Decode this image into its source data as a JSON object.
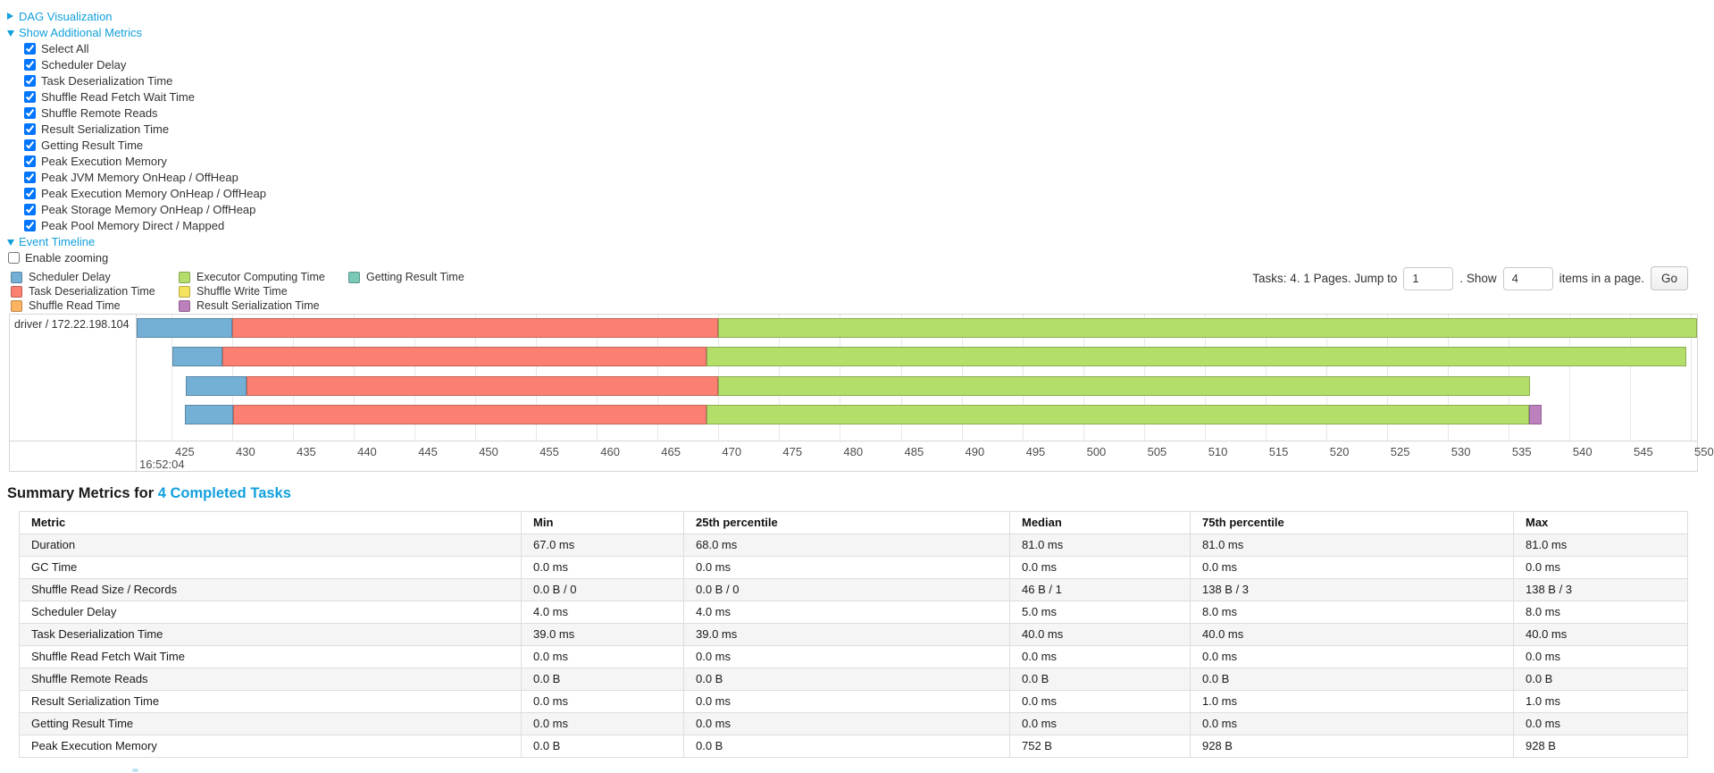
{
  "dag_panel": {
    "label": "DAG Visualization",
    "collapsed": true
  },
  "metrics_panel": {
    "label": "Show Additional Metrics",
    "items": [
      "Select All",
      "Scheduler Delay",
      "Task Deserialization Time",
      "Shuffle Read Fetch Wait Time",
      "Shuffle Remote Reads",
      "Result Serialization Time",
      "Getting Result Time",
      "Peak Execution Memory",
      "Peak JVM Memory OnHeap / OffHeap",
      "Peak Execution Memory OnHeap / OffHeap",
      "Peak Storage Memory OnHeap / OffHeap",
      "Peak Pool Memory Direct / Mapped"
    ],
    "all_checked": true
  },
  "timeline_panel": {
    "label": "Event Timeline",
    "enable_zooming_label": "Enable zooming",
    "enable_zooming_checked": false
  },
  "pagination": {
    "summary_text": "Tasks: 4. 1 Pages. Jump to",
    "jump_value": "1",
    "show_label": ". Show",
    "show_value": "4",
    "suffix_text": "items in a page.",
    "go_label": "Go"
  },
  "legend": {
    "columns": [
      [
        {
          "id": "scheduler-delay",
          "label": "Scheduler Delay",
          "color": "#74AFD5"
        },
        {
          "id": "deserialization",
          "label": "Task Deserialization Time",
          "color": "#FB8072"
        },
        {
          "id": "shuffle-read",
          "label": "Shuffle Read Time",
          "color": "#FDB462"
        }
      ],
      [
        {
          "id": "executor-computing",
          "label": "Executor Computing Time",
          "color": "#B3DE69"
        },
        {
          "id": "shuffle-write",
          "label": "Shuffle Write Time",
          "color": "#F5E35E"
        },
        {
          "id": "result-serialization",
          "label": "Result Serialization Time",
          "color": "#BC80BD"
        }
      ],
      [
        {
          "id": "getting-result",
          "label": "Getting Result Time",
          "color": "#79C8B8"
        }
      ]
    ]
  },
  "chart_data": {
    "type": "timeline",
    "executor": "driver / 172.22.198.104",
    "axis": {
      "ticks": [
        425,
        430,
        435,
        440,
        445,
        450,
        455,
        460,
        465,
        470,
        475,
        480,
        485,
        490,
        495,
        500,
        505,
        510,
        515,
        520,
        525,
        530,
        535,
        540,
        545,
        550
      ],
      "major_label": "16:52:04",
      "units": "seconds"
    },
    "tasks": [
      {
        "segments": [
          {
            "type": "scheduler-delay",
            "start": 422.1,
            "end": 430.0
          },
          {
            "type": "deserialization",
            "start": 430.0,
            "end": 470.0
          },
          {
            "type": "executor-computing",
            "start": 470.0,
            "end": 550.8
          }
        ]
      },
      {
        "segments": [
          {
            "type": "scheduler-delay",
            "start": 425.1,
            "end": 429.2
          },
          {
            "type": "deserialization",
            "start": 429.2,
            "end": 469.0
          },
          {
            "type": "executor-computing",
            "start": 469.0,
            "end": 549.6
          }
        ]
      },
      {
        "segments": [
          {
            "type": "scheduler-delay",
            "start": 426.2,
            "end": 431.2
          },
          {
            "type": "deserialization",
            "start": 431.2,
            "end": 470.0
          },
          {
            "type": "executor-computing",
            "start": 470.0,
            "end": 536.8
          }
        ]
      },
      {
        "segments": [
          {
            "type": "scheduler-delay",
            "start": 426.1,
            "end": 430.1
          },
          {
            "type": "deserialization",
            "start": 430.1,
            "end": 469.0
          },
          {
            "type": "executor-computing",
            "start": 469.0,
            "end": 536.7
          },
          {
            "type": "result-serialization",
            "start": 536.7,
            "end": 537.7
          }
        ]
      }
    ]
  },
  "summary": {
    "title_prefix": "Summary Metrics for ",
    "title_link": "4 Completed Tasks",
    "columns": [
      "Metric",
      "Min",
      "25th percentile",
      "Median",
      "75th percentile",
      "Max"
    ],
    "rows": [
      {
        "metric": "Duration",
        "values": [
          "67.0 ms",
          "68.0 ms",
          "81.0 ms",
          "81.0 ms",
          "81.0 ms"
        ]
      },
      {
        "metric": "GC Time",
        "values": [
          "0.0 ms",
          "0.0 ms",
          "0.0 ms",
          "0.0 ms",
          "0.0 ms"
        ]
      },
      {
        "metric": "Shuffle Read Size / Records",
        "values": [
          "0.0 B / 0",
          "0.0 B / 0",
          "46 B / 1",
          "138 B / 3",
          "138 B / 3"
        ]
      },
      {
        "metric": "Scheduler Delay",
        "values": [
          "4.0 ms",
          "4.0 ms",
          "5.0 ms",
          "8.0 ms",
          "8.0 ms"
        ]
      },
      {
        "metric": "Task Deserialization Time",
        "values": [
          "39.0 ms",
          "39.0 ms",
          "40.0 ms",
          "40.0 ms",
          "40.0 ms"
        ]
      },
      {
        "metric": "Shuffle Read Fetch Wait Time",
        "values": [
          "0.0 ms",
          "0.0 ms",
          "0.0 ms",
          "0.0 ms",
          "0.0 ms"
        ]
      },
      {
        "metric": "Shuffle Remote Reads",
        "values": [
          "0.0 B",
          "0.0 B",
          "0.0 B",
          "0.0 B",
          "0.0 B"
        ]
      },
      {
        "metric": "Result Serialization Time",
        "values": [
          "0.0 ms",
          "0.0 ms",
          "0.0 ms",
          "1.0 ms",
          "1.0 ms"
        ]
      },
      {
        "metric": "Getting Result Time",
        "values": [
          "0.0 ms",
          "0.0 ms",
          "0.0 ms",
          "0.0 ms",
          "0.0 ms"
        ]
      },
      {
        "metric": "Peak Execution Memory",
        "values": [
          "0.0 B",
          "0.0 B",
          "752 B",
          "928 B",
          "928 B"
        ]
      }
    ]
  }
}
